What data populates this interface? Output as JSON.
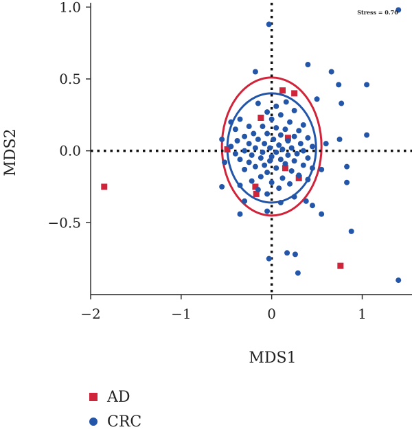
{
  "chart_data": {
    "type": "scatter",
    "xlabel": "MDS1",
    "ylabel": "MDS2",
    "xlim": [
      -2,
      1.55
    ],
    "ylim": [
      -1.0,
      1.03
    ],
    "xticks": [
      -2,
      -1,
      0,
      1
    ],
    "yticks": [
      -0.5,
      0.0,
      0.5,
      1.0
    ],
    "xtick_labels": [
      "−2",
      "−1",
      "0",
      "1"
    ],
    "ytick_labels": [
      "−0.5",
      "0.0",
      "0.5",
      "1.0"
    ],
    "stress_label": "Stress = 0.70",
    "reference_lines": {
      "x": 0,
      "y": 0,
      "style": "dotted"
    },
    "ellipses": [
      {
        "group": "AD",
        "color": "#d0243a",
        "cx": 0.0,
        "cy": 0.03,
        "rx": 0.55,
        "ry": 0.48
      },
      {
        "group": "CRC",
        "color": "#2356a8",
        "cx": 0.0,
        "cy": 0.02,
        "rx": 0.49,
        "ry": 0.38
      }
    ],
    "series": [
      {
        "name": "AD",
        "color": "#d0243a",
        "marker": "square",
        "points": [
          [
            -1.85,
            -0.25
          ],
          [
            0.12,
            0.42
          ],
          [
            0.25,
            0.4
          ],
          [
            -0.12,
            0.23
          ],
          [
            0.18,
            0.09
          ],
          [
            0.3,
            -0.19
          ],
          [
            0.15,
            -0.12
          ],
          [
            -0.18,
            -0.25
          ],
          [
            -0.17,
            -0.3
          ],
          [
            0.76,
            -0.8
          ],
          [
            -0.49,
            0.01
          ]
        ]
      },
      {
        "name": "CRC",
        "color": "#2356a8",
        "marker": "circle",
        "points": [
          [
            1.4,
            0.98
          ],
          [
            -0.03,
            0.88
          ],
          [
            0.4,
            0.6
          ],
          [
            0.66,
            0.55
          ],
          [
            0.74,
            0.46
          ],
          [
            1.05,
            0.46
          ],
          [
            -0.18,
            0.55
          ],
          [
            0.16,
            0.34
          ],
          [
            -0.15,
            0.33
          ],
          [
            0.05,
            0.31
          ],
          [
            0.25,
            0.28
          ],
          [
            0.5,
            0.36
          ],
          [
            0.77,
            0.33
          ],
          [
            -0.05,
            0.27
          ],
          [
            0.1,
            0.25
          ],
          [
            -0.35,
            0.22
          ],
          [
            0.0,
            0.22
          ],
          [
            0.2,
            0.2
          ],
          [
            0.35,
            0.18
          ],
          [
            -0.25,
            0.17
          ],
          [
            -0.1,
            0.17
          ],
          [
            0.05,
            0.16
          ],
          [
            0.15,
            0.15
          ],
          [
            -0.4,
            0.15
          ],
          [
            0.3,
            0.14
          ],
          [
            -0.2,
            0.12
          ],
          [
            -0.05,
            0.12
          ],
          [
            0.1,
            0.11
          ],
          [
            0.25,
            0.1
          ],
          [
            -0.3,
            0.1
          ],
          [
            0.4,
            0.09
          ],
          [
            -0.15,
            0.08
          ],
          [
            0.02,
            0.08
          ],
          [
            0.18,
            0.07
          ],
          [
            -0.38,
            0.07
          ],
          [
            -0.25,
            0.05
          ],
          [
            0.32,
            0.05
          ],
          [
            -0.08,
            0.05
          ],
          [
            0.08,
            0.04
          ],
          [
            0.45,
            0.03
          ],
          [
            -0.45,
            0.03
          ],
          [
            -0.18,
            0.02
          ],
          [
            0.22,
            0.02
          ],
          [
            -0.02,
            0.02
          ],
          [
            0.12,
            0.01
          ],
          [
            -0.3,
            0.0
          ],
          [
            0.35,
            0.0
          ],
          [
            -0.1,
            -0.01
          ],
          [
            0.05,
            -0.01
          ],
          [
            -0.4,
            -0.02
          ],
          [
            0.28,
            -0.02
          ],
          [
            -0.22,
            -0.03
          ],
          [
            0.18,
            -0.03
          ],
          [
            0.0,
            -0.04
          ],
          [
            -0.12,
            -0.05
          ],
          [
            0.4,
            -0.05
          ],
          [
            0.1,
            -0.06
          ],
          [
            -0.35,
            -0.06
          ],
          [
            -0.02,
            -0.07
          ],
          [
            0.25,
            -0.07
          ],
          [
            -0.25,
            -0.08
          ],
          [
            0.15,
            -0.09
          ],
          [
            -0.08,
            -0.1
          ],
          [
            0.35,
            -0.1
          ],
          [
            -0.18,
            -0.11
          ],
          [
            0.05,
            -0.12
          ],
          [
            0.45,
            -0.12
          ],
          [
            -0.3,
            -0.13
          ],
          [
            0.22,
            -0.14
          ],
          [
            -0.05,
            -0.15
          ],
          [
            0.3,
            -0.17
          ],
          [
            -0.12,
            -0.18
          ],
          [
            0.12,
            -0.19
          ],
          [
            0.4,
            -0.2
          ],
          [
            -0.22,
            -0.21
          ],
          [
            0.0,
            -0.22
          ],
          [
            0.2,
            -0.23
          ],
          [
            -0.35,
            -0.24
          ],
          [
            0.08,
            -0.26
          ],
          [
            -0.15,
            -0.27
          ],
          [
            -0.05,
            -0.3
          ],
          [
            0.25,
            -0.32
          ],
          [
            -0.3,
            -0.35
          ],
          [
            0.1,
            -0.36
          ],
          [
            -0.55,
            -0.25
          ],
          [
            -0.52,
            -0.08
          ],
          [
            -0.55,
            0.08
          ],
          [
            -0.45,
            0.2
          ],
          [
            0.83,
            -0.11
          ],
          [
            0.83,
            -0.22
          ],
          [
            1.05,
            0.11
          ],
          [
            0.75,
            0.08
          ],
          [
            0.38,
            -0.35
          ],
          [
            0.55,
            -0.44
          ],
          [
            -0.35,
            -0.44
          ],
          [
            -0.05,
            -0.42
          ],
          [
            -0.03,
            -0.75
          ],
          [
            0.17,
            -0.71
          ],
          [
            0.26,
            -0.72
          ],
          [
            0.88,
            -0.56
          ],
          [
            0.29,
            -0.85
          ],
          [
            1.4,
            -0.9
          ],
          [
            0.45,
            -0.38
          ],
          [
            0.55,
            -0.13
          ],
          [
            0.6,
            0.05
          ]
        ]
      }
    ],
    "legend": {
      "placement": "bottom-left",
      "entries": [
        "AD",
        "CRC"
      ]
    }
  }
}
